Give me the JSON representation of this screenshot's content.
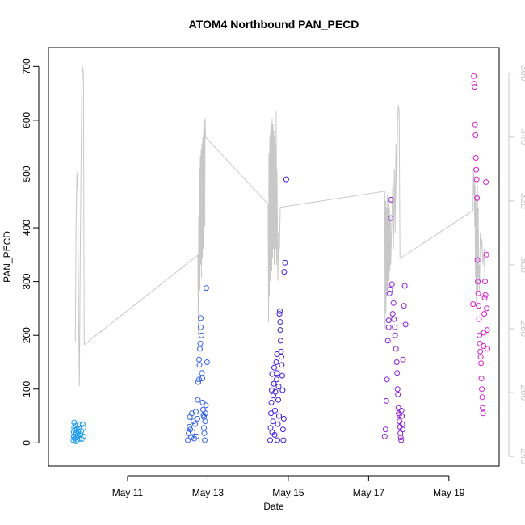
{
  "chart_data": {
    "type": "scatter",
    "title": "ATOM4 Northbound PAN_PECD",
    "xlabel": "Date",
    "ylabel": "PAN_PECD",
    "x_ticks": [
      "May 11",
      "May 13",
      "May 15",
      "May 17",
      "May 19"
    ],
    "x_tick_days": [
      11,
      13,
      15,
      17,
      19
    ],
    "xlim_days": [
      9.03,
      20.25
    ],
    "ylim": [
      -43,
      735
    ],
    "y_ticks": [
      0,
      100,
      200,
      300,
      400,
      500,
      600,
      700
    ],
    "y2lim": [
      237,
      368
    ],
    "y2_ticks": [
      240,
      260,
      280,
      300,
      320,
      340,
      360
    ],
    "colors": {
      "axis": "#000000",
      "right_axis": "#c8c8c8",
      "line": "#c8c8c8"
    },
    "series": [
      {
        "color": "#1e9bf0",
        "points": [
          [
            9.65,
            5
          ],
          [
            9.66,
            12
          ],
          [
            9.66,
            20
          ],
          [
            9.67,
            28
          ],
          [
            9.67,
            38
          ],
          [
            9.68,
            8
          ],
          [
            9.69,
            15
          ],
          [
            9.7,
            32
          ],
          [
            9.7,
            24
          ],
          [
            9.71,
            3
          ],
          [
            9.72,
            18
          ],
          [
            9.73,
            10
          ],
          [
            9.74,
            26
          ],
          [
            9.75,
            6
          ],
          [
            9.76,
            14
          ],
          [
            9.77,
            21
          ],
          [
            9.8,
            34
          ],
          [
            9.81,
            8
          ],
          [
            9.83,
            16
          ],
          [
            9.85,
            22
          ],
          [
            9.86,
            7
          ],
          [
            9.88,
            35
          ],
          [
            9.9,
            12
          ],
          [
            9.9,
            28
          ]
        ]
      },
      {
        "color": "#3361e8",
        "points": [
          [
            12.5,
            5
          ],
          [
            12.52,
            18
          ],
          [
            12.54,
            30
          ],
          [
            12.55,
            48
          ],
          [
            12.56,
            25
          ],
          [
            12.58,
            10
          ],
          [
            12.6,
            55
          ],
          [
            12.62,
            20
          ],
          [
            12.64,
            40
          ],
          [
            12.66,
            8
          ],
          [
            12.68,
            35
          ],
          [
            12.7,
            58
          ],
          [
            12.72,
            12
          ],
          [
            12.74,
            45
          ],
          [
            12.75,
            80
          ],
          [
            12.76,
            113
          ],
          [
            12.78,
            118
          ],
          [
            12.78,
            155
          ],
          [
            12.79,
            145
          ],
          [
            12.8,
            175
          ],
          [
            12.81,
            185
          ],
          [
            12.82,
            215
          ],
          [
            12.82,
            232
          ],
          [
            12.84,
            200
          ],
          [
            12.85,
            130
          ],
          [
            12.86,
            120
          ],
          [
            12.87,
            75
          ],
          [
            12.88,
            62
          ],
          [
            12.89,
            52
          ],
          [
            12.9,
            48
          ],
          [
            12.9,
            28
          ],
          [
            12.91,
            18
          ],
          [
            12.92,
            5
          ],
          [
            12.93,
            40
          ],
          [
            12.94,
            55
          ],
          [
            12.95,
            70
          ],
          [
            12.96,
            288
          ],
          [
            12.98,
            150
          ]
        ]
      },
      {
        "color": "#3b1ee0",
        "points": [
          [
            14.55,
            5
          ],
          [
            14.56,
            28
          ],
          [
            14.57,
            55
          ],
          [
            14.58,
            75
          ],
          [
            14.59,
            98
          ],
          [
            14.6,
            128
          ],
          [
            14.6,
            20
          ],
          [
            14.62,
            40
          ],
          [
            14.63,
            88
          ],
          [
            14.64,
            110
          ],
          [
            14.65,
            140
          ],
          [
            14.66,
            15
          ],
          [
            14.67,
            60
          ],
          [
            14.68,
            95
          ],
          [
            14.7,
            150
          ],
          [
            14.71,
            118
          ],
          [
            14.72,
            130
          ],
          [
            14.72,
            165
          ],
          [
            14.73,
            5
          ],
          [
            14.74,
            35
          ],
          [
            14.75,
            80
          ],
          [
            14.76,
            105
          ],
          [
            14.77,
            50
          ],
          [
            14.78,
            240
          ],
          [
            14.79,
            245
          ],
          [
            14.8,
            225
          ],
          [
            14.8,
            210
          ],
          [
            14.81,
            190
          ],
          [
            14.82,
            170
          ],
          [
            14.83,
            160
          ],
          [
            14.84,
            145
          ],
          [
            14.85,
            125
          ],
          [
            14.86,
            98
          ],
          [
            14.87,
            25
          ],
          [
            14.88,
            5
          ],
          [
            14.89,
            45
          ],
          [
            14.9,
            318
          ],
          [
            14.92,
            335
          ],
          [
            14.95,
            490
          ]
        ]
      },
      {
        "color": "#8a1fd8",
        "points": [
          [
            17.4,
            12
          ],
          [
            17.42,
            25
          ],
          [
            17.44,
            78
          ],
          [
            17.46,
            118
          ],
          [
            17.48,
            190
          ],
          [
            17.5,
            215
          ],
          [
            17.5,
            228
          ],
          [
            17.52,
            278
          ],
          [
            17.54,
            285
          ],
          [
            17.55,
            418
          ],
          [
            17.56,
            452
          ],
          [
            17.58,
            295
          ],
          [
            17.6,
            240
          ],
          [
            17.62,
            260
          ],
          [
            17.63,
            230
          ],
          [
            17.65,
            215
          ],
          [
            17.66,
            200
          ],
          [
            17.68,
            175
          ],
          [
            17.7,
            150
          ],
          [
            17.71,
            130
          ],
          [
            17.72,
            100
          ],
          [
            17.73,
            90
          ],
          [
            17.74,
            65
          ],
          [
            17.75,
            55
          ],
          [
            17.76,
            52
          ],
          [
            17.77,
            40
          ],
          [
            17.78,
            30
          ],
          [
            17.79,
            18
          ],
          [
            17.8,
            10
          ],
          [
            17.81,
            5
          ],
          [
            17.82,
            60
          ],
          [
            17.83,
            50
          ],
          [
            17.84,
            35
          ],
          [
            17.85,
            25
          ],
          [
            17.86,
            155
          ],
          [
            17.88,
            255
          ],
          [
            17.9,
            292
          ],
          [
            17.92,
            220
          ]
        ]
      },
      {
        "color": "#d81bd2",
        "points": [
          [
            19.6,
            258
          ],
          [
            19.62,
            682
          ],
          [
            19.63,
            668
          ],
          [
            19.64,
            662
          ],
          [
            19.65,
            592
          ],
          [
            19.66,
            572
          ],
          [
            19.67,
            530
          ],
          [
            19.68,
            508
          ],
          [
            19.69,
            490
          ],
          [
            19.7,
            455
          ],
          [
            19.71,
            340
          ],
          [
            19.72,
            300
          ],
          [
            19.73,
            278
          ],
          [
            19.74,
            255
          ],
          [
            19.75,
            230
          ],
          [
            19.76,
            200
          ],
          [
            19.77,
            185
          ],
          [
            19.78,
            170
          ],
          [
            19.79,
            160
          ],
          [
            19.8,
            148
          ],
          [
            19.81,
            120
          ],
          [
            19.82,
            100
          ],
          [
            19.83,
            85
          ],
          [
            19.84,
            65
          ],
          [
            19.85,
            55
          ],
          [
            19.86,
            180
          ],
          [
            19.87,
            205
          ],
          [
            19.88,
            240
          ],
          [
            19.89,
            270
          ],
          [
            19.9,
            300
          ],
          [
            19.91,
            275
          ],
          [
            19.92,
            485
          ],
          [
            19.93,
            350
          ],
          [
            19.94,
            250
          ],
          [
            19.95,
            210
          ],
          [
            19.96,
            175
          ]
        ]
      }
    ],
    "line": {
      "color": "#c8c8c8",
      "points": [
        [
          9.7,
          276
        ],
        [
          9.72,
          316
        ],
        [
          9.74,
          329
        ],
        [
          9.76,
          323
        ],
        [
          9.78,
          285
        ],
        [
          9.8,
          262
        ],
        [
          9.82,
          300
        ],
        [
          9.84,
          330
        ],
        [
          9.86,
          355
        ],
        [
          9.88,
          362
        ],
        [
          9.9,
          360
        ],
        [
          9.92,
          275
        ],
        [
          12.75,
          303
        ],
        [
          12.76,
          278
        ],
        [
          12.77,
          315
        ],
        [
          12.78,
          290
        ],
        [
          12.79,
          330
        ],
        [
          12.8,
          292
        ],
        [
          12.81,
          334
        ],
        [
          12.82,
          300
        ],
        [
          12.83,
          336
        ],
        [
          12.84,
          296
        ],
        [
          12.85,
          338
        ],
        [
          12.86,
          302
        ],
        [
          12.87,
          340
        ],
        [
          12.88,
          305
        ],
        [
          12.89,
          342
        ],
        [
          12.9,
          308
        ],
        [
          12.91,
          345
        ],
        [
          12.92,
          312
        ],
        [
          12.93,
          346
        ],
        [
          12.94,
          340
        ],
        [
          14.5,
          319
        ],
        [
          14.51,
          282
        ],
        [
          14.52,
          335
        ],
        [
          14.53,
          290
        ],
        [
          14.54,
          340
        ],
        [
          14.55,
          295
        ],
        [
          14.56,
          342
        ],
        [
          14.57,
          300
        ],
        [
          14.58,
          344
        ],
        [
          14.59,
          298
        ],
        [
          14.6,
          346
        ],
        [
          14.61,
          302
        ],
        [
          14.62,
          344
        ],
        [
          14.63,
          305
        ],
        [
          14.64,
          342
        ],
        [
          14.65,
          300
        ],
        [
          14.66,
          340
        ],
        [
          14.67,
          295
        ],
        [
          14.68,
          338
        ],
        [
          14.69,
          305
        ],
        [
          14.7,
          348
        ],
        [
          14.71,
          300
        ],
        [
          14.72,
          330
        ],
        [
          14.74,
          295
        ],
        [
          14.76,
          310
        ],
        [
          14.78,
          305
        ],
        [
          14.8,
          318
        ],
        [
          17.4,
          323
        ],
        [
          17.41,
          280
        ],
        [
          17.42,
          320
        ],
        [
          17.43,
          285
        ],
        [
          17.44,
          318
        ],
        [
          17.45,
          290
        ],
        [
          17.46,
          322
        ],
        [
          17.47,
          292
        ],
        [
          17.48,
          318
        ],
        [
          17.49,
          290
        ],
        [
          17.5,
          320
        ],
        [
          17.51,
          295
        ],
        [
          17.52,
          318
        ],
        [
          17.53,
          298
        ],
        [
          17.54,
          315
        ],
        [
          17.55,
          300
        ],
        [
          17.6,
          325
        ],
        [
          17.62,
          305
        ],
        [
          17.64,
          330
        ],
        [
          17.66,
          310
        ],
        [
          17.68,
          338
        ],
        [
          17.7,
          320
        ],
        [
          17.72,
          345
        ],
        [
          17.74,
          350
        ],
        [
          17.76,
          348
        ],
        [
          17.78,
          302
        ],
        [
          19.6,
          317
        ],
        [
          19.61,
          330
        ],
        [
          19.62,
          322
        ],
        [
          19.63,
          328
        ],
        [
          19.64,
          312
        ],
        [
          19.65,
          325
        ],
        [
          19.66,
          296
        ],
        [
          19.67,
          322
        ],
        [
          19.68,
          288
        ],
        [
          19.69,
          318
        ],
        [
          19.7,
          290
        ],
        [
          19.71,
          325
        ],
        [
          19.72,
          292
        ],
        [
          19.73,
          318
        ],
        [
          19.74,
          295
        ],
        [
          19.75,
          300
        ],
        [
          19.76,
          292
        ],
        [
          19.78,
          310
        ],
        [
          19.8,
          305
        ],
        [
          19.82,
          308
        ],
        [
          19.85,
          300
        ],
        [
          19.88,
          305
        ],
        [
          19.9,
          290
        ]
      ]
    }
  }
}
